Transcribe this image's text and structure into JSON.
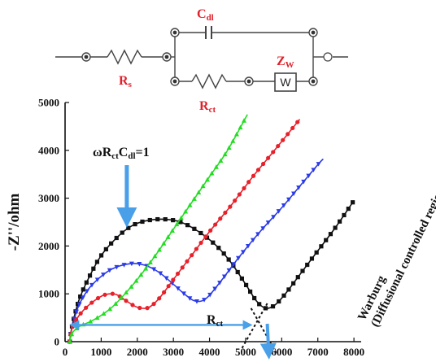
{
  "circuit": {
    "rs_label": "R",
    "rs_sub": "s",
    "cdl_label": "C",
    "cdl_sub": "dl",
    "rct_label": "R",
    "rct_sub": "ct",
    "zw_label": "Z",
    "zw_sub": "W",
    "w_box": "W",
    "label_color": "#e0202a"
  },
  "chart_data": {
    "type": "line",
    "xlim": [
      0,
      8200
    ],
    "ylim": [
      0,
      5000
    ],
    "xticks": [
      "0",
      "1000",
      "2000",
      "3000",
      "4000",
      "5000",
      "6000",
      "7000",
      "8000"
    ],
    "yticks": [
      "0",
      "1000",
      "2000",
      "3000",
      "4000",
      "5000"
    ],
    "ylabel": "-Z''/ohm",
    "xlabel": "",
    "grid": false,
    "series": [
      {
        "color": "#111111",
        "marker": "square",
        "points": [
          [
            130,
            0
          ],
          [
            200,
            350
          ],
          [
            400,
            900
          ],
          [
            700,
            1400
          ],
          [
            1000,
            1800
          ],
          [
            1400,
            2150
          ],
          [
            1800,
            2400
          ],
          [
            2200,
            2520
          ],
          [
            2700,
            2560
          ],
          [
            3200,
            2500
          ],
          [
            3700,
            2300
          ],
          [
            4200,
            2000
          ],
          [
            4600,
            1650
          ],
          [
            5000,
            1200
          ],
          [
            5300,
            850
          ],
          [
            5550,
            700
          ],
          [
            5800,
            760
          ],
          [
            6100,
            1000
          ],
          [
            6500,
            1400
          ],
          [
            7000,
            1900
          ],
          [
            7500,
            2400
          ],
          [
            8000,
            2950
          ]
        ]
      },
      {
        "color": "#2b3be8",
        "marker": "triangle-down",
        "points": [
          [
            130,
            0
          ],
          [
            180,
            250
          ],
          [
            350,
            700
          ],
          [
            600,
            1050
          ],
          [
            900,
            1300
          ],
          [
            1300,
            1520
          ],
          [
            1800,
            1630
          ],
          [
            2200,
            1600
          ],
          [
            2600,
            1450
          ],
          [
            3000,
            1200
          ],
          [
            3300,
            1000
          ],
          [
            3600,
            850
          ],
          [
            3900,
            900
          ],
          [
            4300,
            1250
          ],
          [
            4800,
            1750
          ],
          [
            5400,
            2300
          ],
          [
            6000,
            2800
          ],
          [
            6500,
            3250
          ],
          [
            7000,
            3700
          ],
          [
            7150,
            3820
          ]
        ]
      },
      {
        "color": "#e8202a",
        "marker": "circle",
        "points": [
          [
            130,
            0
          ],
          [
            180,
            250
          ],
          [
            300,
            450
          ],
          [
            500,
            650
          ],
          [
            800,
            850
          ],
          [
            1100,
            980
          ],
          [
            1400,
            990
          ],
          [
            1700,
            850
          ],
          [
            2000,
            720
          ],
          [
            2300,
            710
          ],
          [
            2600,
            900
          ],
          [
            3000,
            1300
          ],
          [
            3500,
            1800
          ],
          [
            4000,
            2300
          ],
          [
            4600,
            2850
          ],
          [
            5200,
            3450
          ],
          [
            5800,
            4000
          ],
          [
            6500,
            4650
          ]
        ]
      },
      {
        "color": "#22dd22",
        "marker": "triangle-up",
        "points": [
          [
            130,
            0
          ],
          [
            200,
            180
          ],
          [
            400,
            320
          ],
          [
            700,
            420
          ],
          [
            1000,
            550
          ],
          [
            1300,
            720
          ],
          [
            1600,
            950
          ],
          [
            2000,
            1300
          ],
          [
            2500,
            1800
          ],
          [
            3000,
            2350
          ],
          [
            3500,
            2900
          ],
          [
            4000,
            3450
          ],
          [
            4500,
            4000
          ],
          [
            5050,
            4750
          ]
        ]
      }
    ],
    "annotations": {
      "omega_text": "ωR",
      "omega_sub1": "ct",
      "omega_mid": "C",
      "omega_sub2": "dl",
      "omega_end": "=1",
      "omega_point": [
        1800,
        2400
      ],
      "rct_text": "R",
      "rct_sub": "ct",
      "rct_span": [
        130,
        5050
      ],
      "rct_y": 400,
      "warburg_line1": "Warburg",
      "warburg_line2": "(Diffusional controlled region)"
    }
  }
}
